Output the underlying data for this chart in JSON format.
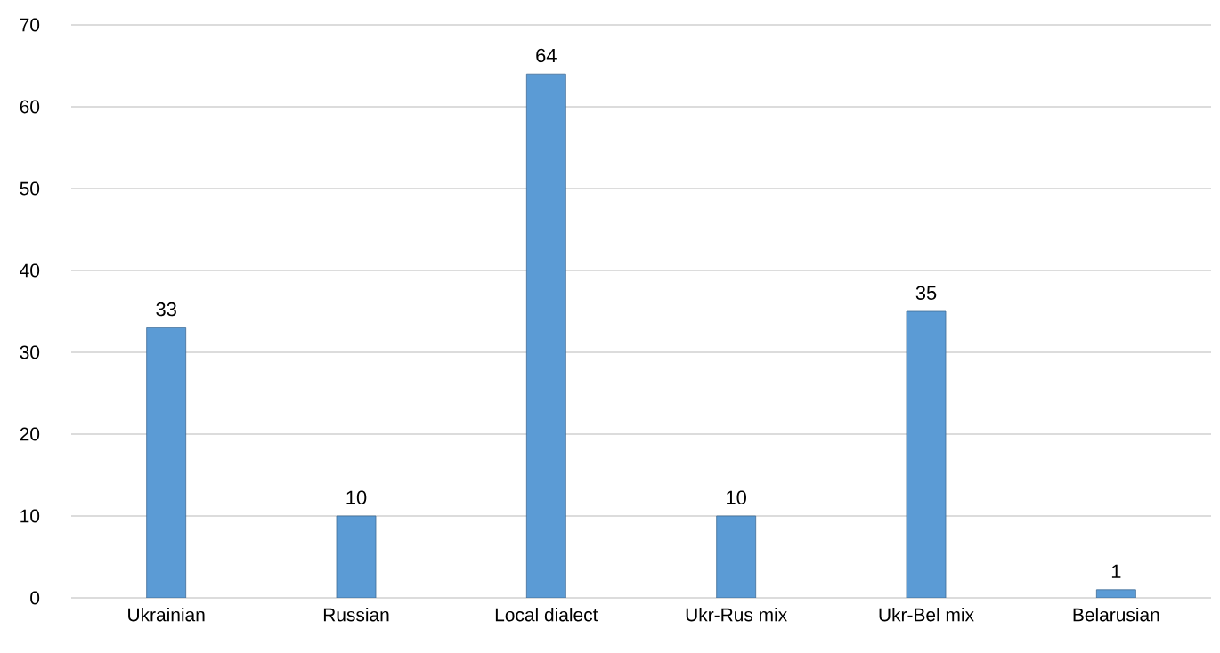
{
  "chart_data": {
    "type": "bar",
    "categories": [
      "Ukrainian",
      "Russian",
      "Local dialect",
      "Ukr-Rus mix",
      "Ukr-Bel mix",
      "Belarusian"
    ],
    "values": [
      33,
      10,
      64,
      10,
      35,
      1
    ],
    "color": "#5b9bd5",
    "ylim": [
      0,
      70
    ],
    "yticks": [
      0,
      10,
      20,
      30,
      40,
      50,
      60,
      70
    ],
    "grid": "y",
    "data_labels": true
  }
}
